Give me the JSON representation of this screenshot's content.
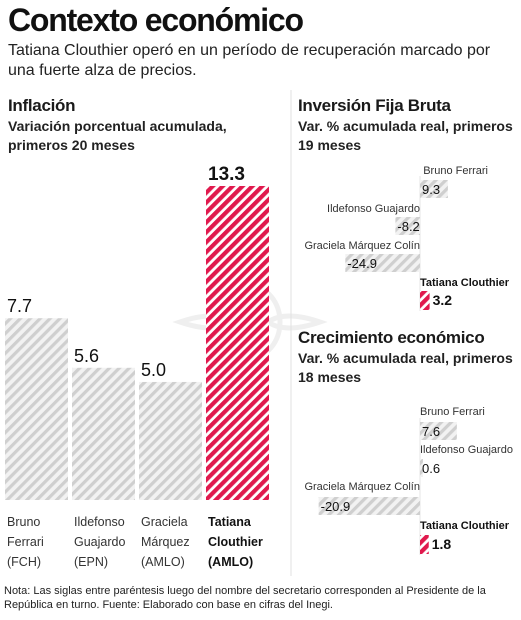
{
  "header": {
    "title": "Contexto económico",
    "subtitle": "Tatiana Clouthier operó en un período de recuperación marcado por una fuerte alza de precios."
  },
  "colors": {
    "grey_hatch": "#cfcfcf",
    "red_hatch": "#e0194d",
    "background": "#ffffff",
    "divider": "#d6d6d6"
  },
  "chart_data": [
    {
      "type": "bar",
      "title": "Inflación",
      "subtitle": "Variación porcentual acumulada, primeros 20 meses",
      "categories": [
        [
          "Bruno",
          "Ferrari",
          "(FCH)"
        ],
        [
          "Ildefonso",
          "Guajardo",
          "(EPN)"
        ],
        [
          "Graciela",
          "Márquez",
          "(AMLO)"
        ],
        [
          "Tatiana",
          "Clouthier",
          "(AMLO)"
        ]
      ],
      "values": [
        7.7,
        5.6,
        5.0,
        13.3
      ],
      "value_labels": [
        "7.7",
        "5.6",
        "5.0",
        "13.3"
      ],
      "highlight": [
        false,
        false,
        false,
        true
      ],
      "ylim": [
        0,
        13.3
      ]
    },
    {
      "type": "bar",
      "orientation": "horizontal",
      "title": "Inversión Fija Bruta",
      "subtitle": "Var. % acumulada real, primeros 19 meses",
      "categories": [
        "Bruno Ferrari",
        "Ildefonso Guajardo",
        "Graciela Márquez Colín",
        "Tatiana Clouthier"
      ],
      "values": [
        9.3,
        -8.2,
        -24.9,
        3.2
      ],
      "value_labels": [
        "9.3",
        "-8.2",
        "-24.9",
        "3.2"
      ],
      "highlight": [
        false,
        false,
        false,
        true
      ],
      "xlim": [
        -24.9,
        9.3
      ]
    },
    {
      "type": "bar",
      "orientation": "horizontal",
      "title": "Crecimiento económico",
      "subtitle": "Var. % acumulada real, primeros 18 meses",
      "categories": [
        "Bruno Ferrari",
        "Ildefonso Guajardo",
        "Graciela Márquez Colín",
        "Tatiana Clouthier"
      ],
      "values": [
        7.6,
        0.6,
        -20.9,
        1.8
      ],
      "value_labels": [
        "7.6",
        "0.6",
        "-20.9",
        "1.8"
      ],
      "highlight": [
        false,
        false,
        false,
        true
      ],
      "xlim": [
        -20.9,
        7.6
      ]
    }
  ],
  "footnote": "Nota: Las siglas entre paréntesis luego del nombre del secretario corresponden al Presidente de la República en turno.  Fuente: Elaborado con base en cifras del Inegi."
}
